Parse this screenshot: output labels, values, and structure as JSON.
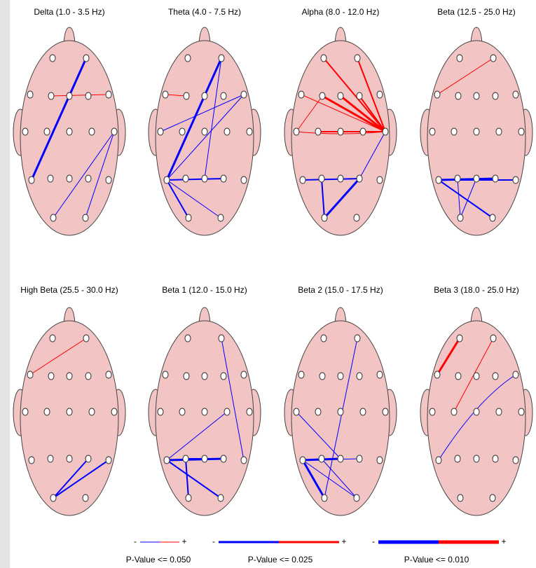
{
  "panels": [
    {
      "title": "Delta (1.0 - 3.5 Hz)"
    },
    {
      "title": "Theta (4.0 - 7.5 Hz)"
    },
    {
      "title": "Alpha (8.0 - 12.0 Hz)"
    },
    {
      "title": "Beta (12.5 - 25.0 Hz)"
    },
    {
      "title": "High Beta (25.5 - 30.0 Hz)"
    },
    {
      "title": "Beta 1 (12.0 - 15.0 Hz)"
    },
    {
      "title": "Beta 2 (15.0 - 17.5 Hz)"
    },
    {
      "title": "Beta 3 (18.0 - 25.0 Hz)"
    }
  ],
  "legend": [
    {
      "minus": "-",
      "plus": "+",
      "label": "P-Value <= 0.050"
    },
    {
      "minus": "-",
      "plus": "+",
      "label": "P-Value <= 0.025"
    },
    {
      "minus": "-",
      "plus": "+",
      "label": "P-Value <= 0.010"
    }
  ]
}
